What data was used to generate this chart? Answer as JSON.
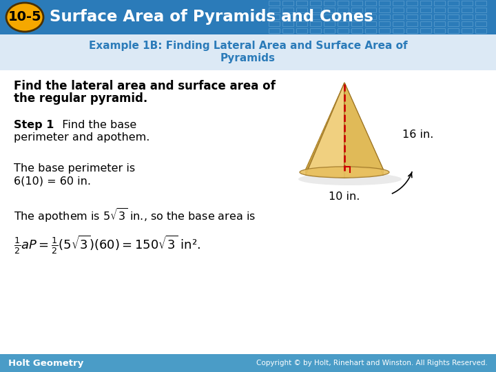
{
  "header_bg_color": "#2B7BB9",
  "header_text": "Surface Area of Pyramids and Cones",
  "header_badge_text": "10-5",
  "header_badge_bg": "#F5A800",
  "example_title_line1": "Example 1B: Finding Lateral Area and Surface Area of",
  "example_title_line2": "Pyramids",
  "example_title_color": "#2B7BB9",
  "example_bar_color": "#DCE9F5",
  "body_bg_color": "#FFFFFF",
  "footer_left": "Holt Geometry",
  "footer_right": "Copyright © by Holt, Rinehart and Winston. All Rights Reserved.",
  "footer_bg": "#4A9CC7",
  "dim_16": "16 in.",
  "dim_10": "10 in.",
  "pyr_face_light": "#F0D090",
  "pyr_face_mid": "#E0B860",
  "pyr_face_dark": "#C8A040",
  "pyr_edge": "#A07828",
  "pyr_dashed_color": "#CC0000",
  "pyr_right_angle_color": "#CC0000"
}
